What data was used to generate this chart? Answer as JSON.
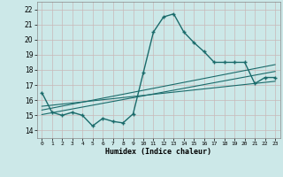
{
  "title": "",
  "xlabel": "Humidex (Indice chaleur)",
  "ylabel": "",
  "bg_color": "#cce8e8",
  "grid_color": "#c8b8b8",
  "line_color": "#1a6b6b",
  "xlim": [
    -0.5,
    23.5
  ],
  "ylim": [
    13.5,
    22.5
  ],
  "xticks": [
    0,
    1,
    2,
    3,
    4,
    5,
    6,
    7,
    8,
    9,
    10,
    11,
    12,
    13,
    14,
    15,
    16,
    17,
    18,
    19,
    20,
    21,
    22,
    23
  ],
  "yticks": [
    14,
    15,
    16,
    17,
    18,
    19,
    20,
    21,
    22
  ],
  "main_line_x": [
    0,
    1,
    2,
    3,
    4,
    5,
    6,
    7,
    8,
    9,
    10,
    11,
    12,
    13,
    14,
    15,
    16,
    17,
    18,
    19,
    20,
    21,
    22,
    23
  ],
  "main_line_y": [
    16.5,
    15.2,
    15.0,
    15.2,
    15.0,
    14.3,
    14.8,
    14.6,
    14.5,
    15.1,
    17.8,
    20.5,
    21.5,
    21.7,
    20.5,
    19.8,
    19.2,
    18.5,
    18.5,
    18.5,
    18.5,
    17.1,
    17.5,
    17.5
  ],
  "trend1_x": [
    0,
    23
  ],
  "trend1_y": [
    15.05,
    17.9
  ],
  "trend2_x": [
    0,
    23
  ],
  "trend2_y": [
    15.35,
    18.35
  ],
  "trend3_x": [
    0,
    23
  ],
  "trend3_y": [
    15.6,
    17.25
  ]
}
